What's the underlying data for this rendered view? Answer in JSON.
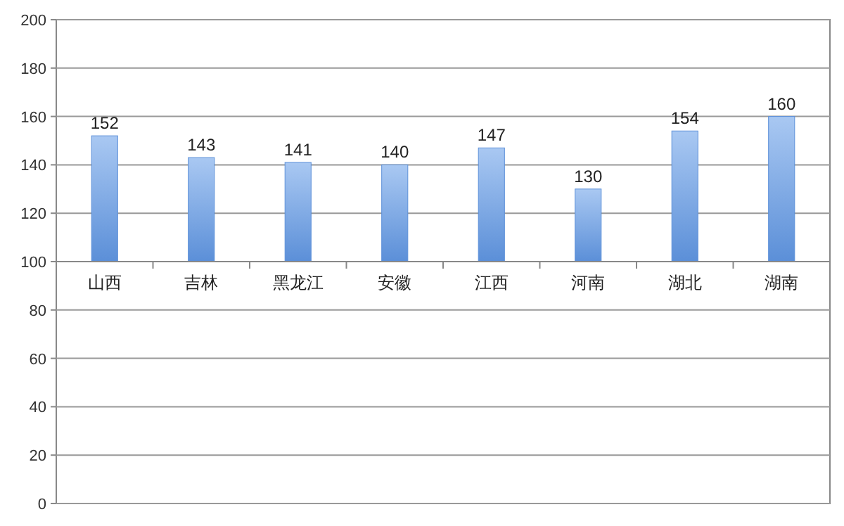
{
  "chart_data": {
    "type": "bar",
    "categories": [
      "山西",
      "吉林",
      "黑龙江",
      "安徽",
      "江西",
      "河南",
      "湖北",
      "湖南"
    ],
    "base": [
      100,
      100,
      100,
      100,
      100,
      100,
      100,
      100
    ],
    "values": [
      52,
      43,
      41,
      40,
      47,
      30,
      54,
      60
    ],
    "value_labels": [
      "152",
      "143",
      "141",
      "140",
      "147",
      "130",
      "154",
      "160"
    ],
    "color": "#5b8fd8",
    "ylim": [
      0,
      200
    ],
    "yticks": [
      0,
      20,
      40,
      60,
      80,
      100,
      120,
      140,
      160,
      180,
      200
    ],
    "grid": "y"
  }
}
